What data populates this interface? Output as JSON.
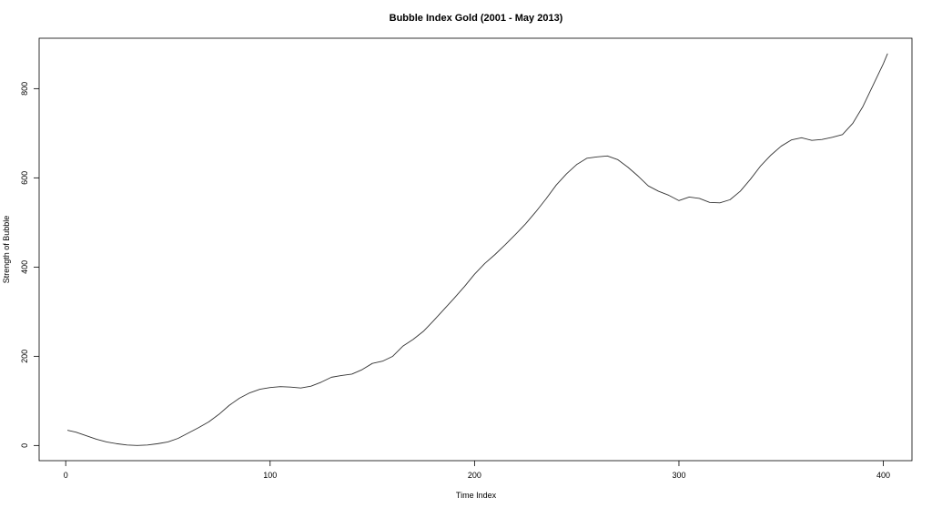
{
  "chart_data": {
    "type": "line",
    "title": "Bubble Index Gold (2001 - May 2013)",
    "xlabel": "Time Index",
    "ylabel": "Strength of Bubble",
    "xlim": [
      -13,
      414
    ],
    "ylim": [
      -34,
      913
    ],
    "x_ticks": [
      0,
      100,
      200,
      300,
      400
    ],
    "y_ticks": [
      0,
      200,
      400,
      600,
      800
    ],
    "grid": false,
    "line_color": "#333333",
    "series": [
      {
        "points": [
          [
            1,
            34
          ],
          [
            5,
            30
          ],
          [
            10,
            22
          ],
          [
            15,
            14
          ],
          [
            20,
            8
          ],
          [
            25,
            4
          ],
          [
            30,
            1
          ],
          [
            35,
            0
          ],
          [
            40,
            1
          ],
          [
            45,
            4
          ],
          [
            50,
            8
          ],
          [
            55,
            16
          ],
          [
            60,
            28
          ],
          [
            65,
            40
          ],
          [
            70,
            53
          ],
          [
            75,
            70
          ],
          [
            80,
            90
          ],
          [
            85,
            106
          ],
          [
            90,
            118
          ],
          [
            95,
            126
          ],
          [
            100,
            130
          ],
          [
            105,
            132
          ],
          [
            110,
            131
          ],
          [
            115,
            129
          ],
          [
            120,
            133
          ],
          [
            125,
            142
          ],
          [
            130,
            153
          ],
          [
            135,
            157
          ],
          [
            140,
            160
          ],
          [
            145,
            170
          ],
          [
            150,
            184
          ],
          [
            155,
            189
          ],
          [
            160,
            200
          ],
          [
            165,
            223
          ],
          [
            170,
            238
          ],
          [
            175,
            256
          ],
          [
            180,
            280
          ],
          [
            185,
            305
          ],
          [
            190,
            330
          ],
          [
            195,
            356
          ],
          [
            200,
            384
          ],
          [
            205,
            408
          ],
          [
            210,
            428
          ],
          [
            215,
            450
          ],
          [
            220,
            473
          ],
          [
            225,
            497
          ],
          [
            230,
            524
          ],
          [
            235,
            553
          ],
          [
            240,
            584
          ],
          [
            245,
            609
          ],
          [
            250,
            630
          ],
          [
            255,
            644
          ],
          [
            260,
            647
          ],
          [
            265,
            649
          ],
          [
            270,
            641
          ],
          [
            275,
            624
          ],
          [
            280,
            604
          ],
          [
            285,
            582
          ],
          [
            290,
            570
          ],
          [
            295,
            561
          ],
          [
            300,
            549
          ],
          [
            305,
            557
          ],
          [
            310,
            554
          ],
          [
            315,
            545
          ],
          [
            320,
            544
          ],
          [
            325,
            551
          ],
          [
            330,
            570
          ],
          [
            335,
            597
          ],
          [
            340,
            627
          ],
          [
            345,
            651
          ],
          [
            350,
            671
          ],
          [
            355,
            685
          ],
          [
            360,
            690
          ],
          [
            365,
            684
          ],
          [
            370,
            686
          ],
          [
            375,
            691
          ],
          [
            380,
            697
          ],
          [
            385,
            722
          ],
          [
            390,
            760
          ],
          [
            395,
            808
          ],
          [
            400,
            856
          ],
          [
            402,
            878
          ]
        ]
      }
    ]
  }
}
